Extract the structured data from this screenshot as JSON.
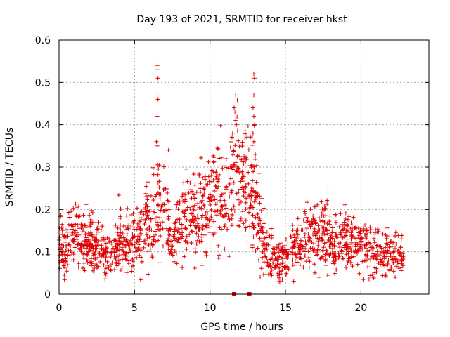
{
  "chart_data": {
    "type": "scatter",
    "title": "Day 193 of 2021, SRMTID for receiver hkst",
    "xlabel": "GPS time / hours",
    "ylabel": "SRMTID / TECUs",
    "xlim": [
      0,
      24.5
    ],
    "ylim": [
      0,
      0.6
    ],
    "x_ticks": [
      0,
      5,
      10,
      15,
      20
    ],
    "x_tick_labels": [
      "0",
      "5",
      "10",
      "15",
      "20"
    ],
    "y_ticks": [
      0,
      0.1,
      0.2,
      0.3,
      0.4,
      0.5,
      0.6
    ],
    "y_tick_labels": [
      "0",
      "0.1",
      "0.2",
      "0.3",
      "0.4",
      "0.5",
      "0.6"
    ],
    "grid": true,
    "marker": "plus",
    "color": "#e00000",
    "x_range_data": [
      0,
      22.8
    ],
    "trend": [
      {
        "x": 0.0,
        "y": 0.12
      },
      {
        "x": 0.5,
        "y": 0.1
      },
      {
        "x": 1.0,
        "y": 0.15
      },
      {
        "x": 1.5,
        "y": 0.13
      },
      {
        "x": 2.0,
        "y": 0.12
      },
      {
        "x": 2.5,
        "y": 0.11
      },
      {
        "x": 3.0,
        "y": 0.09
      },
      {
        "x": 3.5,
        "y": 0.1
      },
      {
        "x": 4.0,
        "y": 0.12
      },
      {
        "x": 4.5,
        "y": 0.13
      },
      {
        "x": 5.0,
        "y": 0.13
      },
      {
        "x": 5.5,
        "y": 0.14
      },
      {
        "x": 6.0,
        "y": 0.17
      },
      {
        "x": 6.5,
        "y": 0.19
      },
      {
        "x": 7.0,
        "y": 0.2
      },
      {
        "x": 7.5,
        "y": 0.12
      },
      {
        "x": 8.0,
        "y": 0.16
      },
      {
        "x": 8.5,
        "y": 0.18
      },
      {
        "x": 9.0,
        "y": 0.19
      },
      {
        "x": 9.5,
        "y": 0.2
      },
      {
        "x": 10.0,
        "y": 0.21
      },
      {
        "x": 10.5,
        "y": 0.22
      },
      {
        "x": 11.0,
        "y": 0.22
      },
      {
        "x": 11.5,
        "y": 0.25
      },
      {
        "x": 12.0,
        "y": 0.28
      },
      {
        "x": 12.5,
        "y": 0.23
      },
      {
        "x": 13.0,
        "y": 0.22
      },
      {
        "x": 13.5,
        "y": 0.12
      },
      {
        "x": 14.0,
        "y": 0.09
      },
      {
        "x": 14.5,
        "y": 0.08
      },
      {
        "x": 15.0,
        "y": 0.08
      },
      {
        "x": 15.5,
        "y": 0.1
      },
      {
        "x": 16.0,
        "y": 0.12
      },
      {
        "x": 16.5,
        "y": 0.13
      },
      {
        "x": 17.0,
        "y": 0.14
      },
      {
        "x": 17.5,
        "y": 0.14
      },
      {
        "x": 18.0,
        "y": 0.12
      },
      {
        "x": 18.5,
        "y": 0.11
      },
      {
        "x": 19.0,
        "y": 0.13
      },
      {
        "x": 19.5,
        "y": 0.12
      },
      {
        "x": 20.0,
        "y": 0.11
      },
      {
        "x": 20.5,
        "y": 0.1
      },
      {
        "x": 21.0,
        "y": 0.1
      },
      {
        "x": 21.5,
        "y": 0.09
      },
      {
        "x": 22.0,
        "y": 0.1
      },
      {
        "x": 22.8,
        "y": 0.09
      }
    ],
    "spikes": [
      {
        "x": 6.5,
        "y": 0.54
      },
      {
        "x": 6.5,
        "y": 0.53
      },
      {
        "x": 6.55,
        "y": 0.51
      },
      {
        "x": 6.5,
        "y": 0.47
      },
      {
        "x": 6.55,
        "y": 0.46
      },
      {
        "x": 6.5,
        "y": 0.42
      },
      {
        "x": 6.45,
        "y": 0.36
      },
      {
        "x": 6.5,
        "y": 0.35
      },
      {
        "x": 7.25,
        "y": 0.34
      },
      {
        "x": 11.7,
        "y": 0.47
      },
      {
        "x": 11.6,
        "y": 0.44
      },
      {
        "x": 11.65,
        "y": 0.43
      },
      {
        "x": 11.7,
        "y": 0.41
      },
      {
        "x": 11.75,
        "y": 0.4
      },
      {
        "x": 11.5,
        "y": 0.38
      },
      {
        "x": 12.9,
        "y": 0.52
      },
      {
        "x": 12.95,
        "y": 0.51
      },
      {
        "x": 12.9,
        "y": 0.47
      },
      {
        "x": 12.85,
        "y": 0.44
      },
      {
        "x": 12.9,
        "y": 0.42
      },
      {
        "x": 12.95,
        "y": 0.4
      },
      {
        "x": 12.85,
        "y": 0.38
      },
      {
        "x": 12.9,
        "y": 0.36
      },
      {
        "x": 13.0,
        "y": 0.33
      }
    ],
    "gap_markers": [
      {
        "x": 11.6,
        "y": 0.0
      },
      {
        "x": 12.6,
        "y": 0.0
      }
    ]
  }
}
